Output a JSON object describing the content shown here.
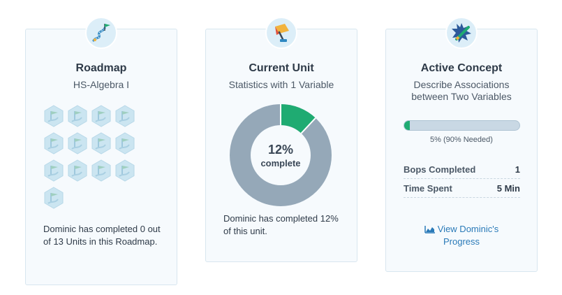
{
  "roadmap": {
    "title": "Roadmap",
    "subtitle": "HS-Algebra I",
    "description": "Dominic has completed 0 out of 13 Units in this Roadmap.",
    "units_total": 13,
    "units_completed": 0,
    "icon": "roadmap-flag-icon",
    "unit_icon": "unit-hexagon-icon"
  },
  "unit": {
    "title": "Current Unit",
    "subtitle": "Statistics with 1 Variable",
    "percent_label": "12%",
    "complete_label": "complete",
    "percent_value": 12,
    "description": "Dominic has completed 12% of this unit.",
    "icon": "broom-icon",
    "colors": {
      "complete": "#1fab72",
      "remaining": "#95a8b8"
    }
  },
  "concept": {
    "title": "Active Concept",
    "subtitle_line1": "Describe Associations",
    "subtitle_line2": "between Two Variables",
    "progress_value": 5,
    "progress_text": "5% (90% Needed)",
    "stats": {
      "bops_label": "Bops Completed",
      "bops_value": "1",
      "time_label": "Time Spent",
      "time_value": "5 Min"
    },
    "link_line1": "View Dominic's",
    "link_line2": "Progress",
    "icon": "starburst-pencil-icon",
    "link_icon": "chart-icon"
  }
}
